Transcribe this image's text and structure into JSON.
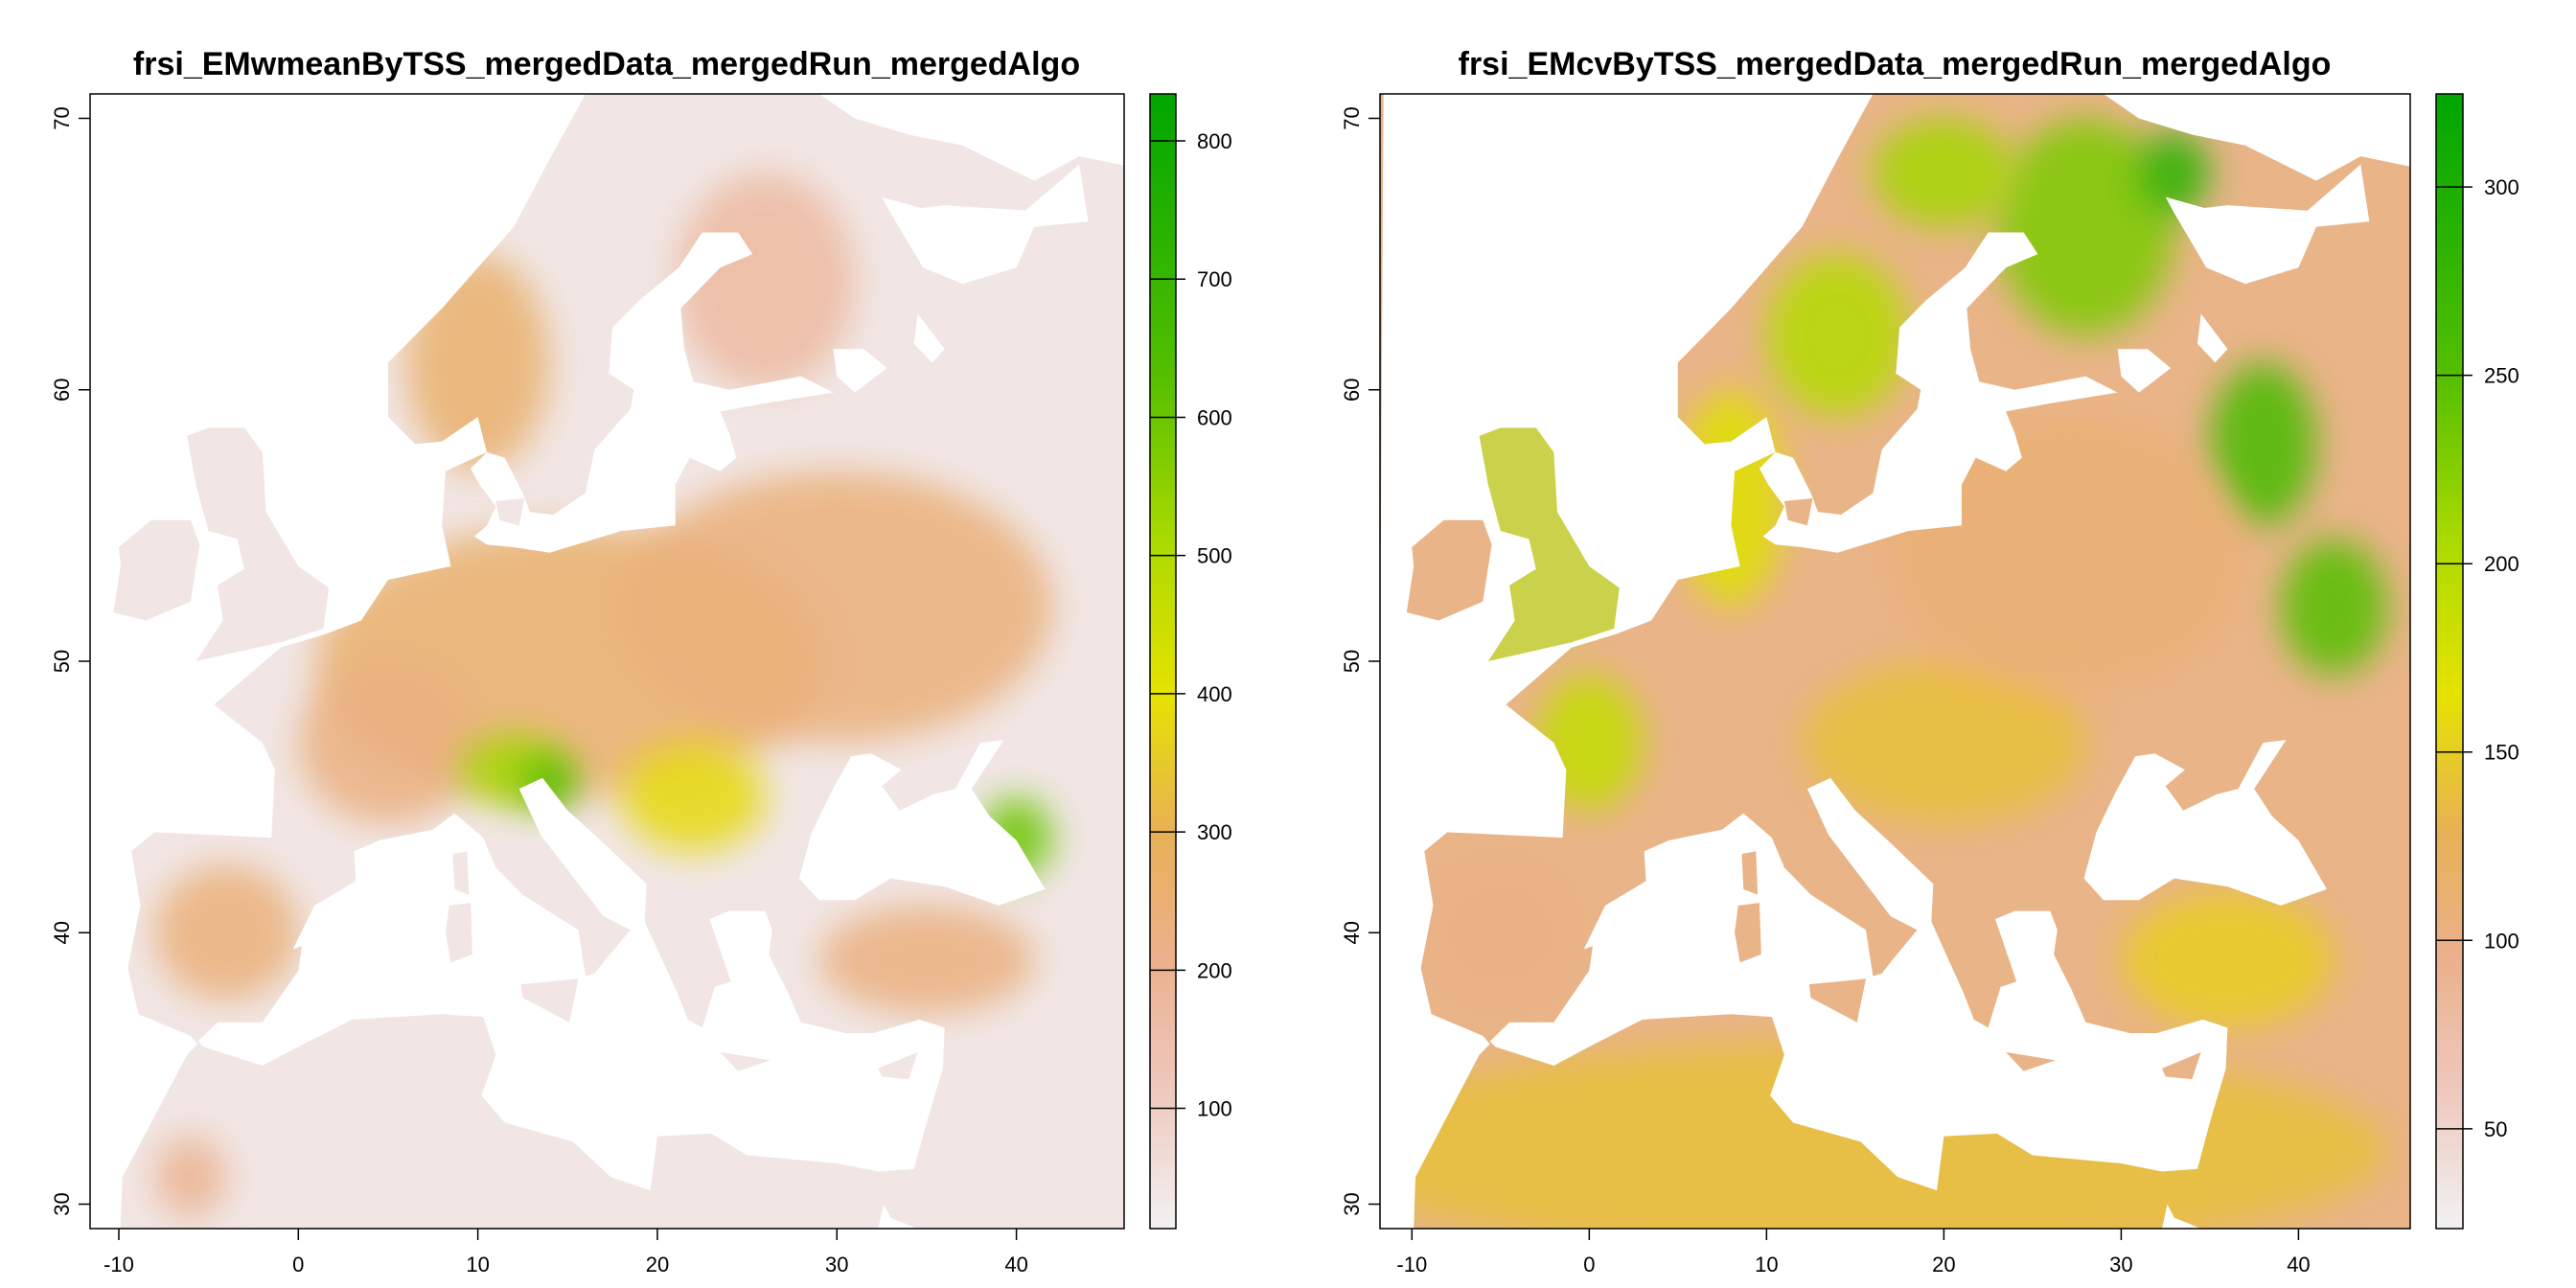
{
  "chart_data": [
    {
      "type": "heatmap",
      "title": "frsi_EMwmeanByTSS_mergedData_mergedRun_mergedAlgo",
      "xlim": [
        -11.6,
        46.0
      ],
      "ylim": [
        29.1,
        70.9
      ],
      "xticks": [
        -10,
        0,
        10,
        20,
        30,
        40
      ],
      "yticks": [
        30,
        40,
        50,
        60,
        70
      ],
      "colorbar": {
        "range": [
          13,
          834
        ],
        "ticks": [
          100,
          200,
          300,
          400,
          500,
          600,
          700,
          800
        ],
        "stops": [
          [
            0,
            "#f2f2f2"
          ],
          [
            0.12,
            "#efc8be"
          ],
          [
            0.24,
            "#ebb08c"
          ],
          [
            0.35,
            "#e8b155"
          ],
          [
            0.47,
            "#e6e200"
          ],
          [
            0.6,
            "#aedb00"
          ],
          [
            0.75,
            "#55bf00"
          ],
          [
            1,
            "#00a600"
          ]
        ]
      },
      "land_color": "#f1e6e4",
      "patch_color": "#ebb597"
    },
    {
      "type": "heatmap",
      "title": "frsi_EMcvByTSS_mergedData_mergedRun_mergedAlgo",
      "xlim": [
        -11.8,
        46.3
      ],
      "ylim": [
        29.1,
        70.9
      ],
      "xticks": [
        -10,
        0,
        10,
        20,
        30,
        40
      ],
      "yticks": [
        30,
        40,
        50,
        60,
        70
      ],
      "colorbar": {
        "range": [
          23.5,
          324.7
        ],
        "ticks": [
          50,
          100,
          150,
          200,
          250,
          300
        ],
        "stops": [
          [
            0,
            "#f2f2f2"
          ],
          [
            0.12,
            "#efc8be"
          ],
          [
            0.24,
            "#ebb08c"
          ],
          [
            0.35,
            "#e8b155"
          ],
          [
            0.47,
            "#e6e200"
          ],
          [
            0.6,
            "#aedb00"
          ],
          [
            0.75,
            "#55bf00"
          ],
          [
            1,
            "#00a600"
          ]
        ]
      },
      "land_color": "#e9b488",
      "patch_color": "#e4b449"
    }
  ]
}
